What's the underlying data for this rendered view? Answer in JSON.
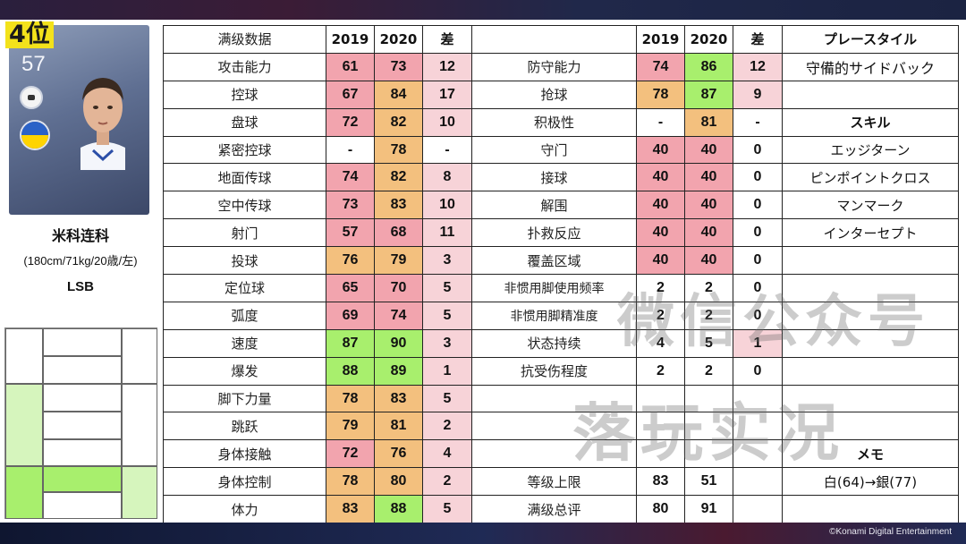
{
  "rank": "4位",
  "player": {
    "rating": "57",
    "name": "米科连科",
    "info": "(180cm/71kg/20歳/左)",
    "position": "LSB"
  },
  "headers": {
    "left_title": "满级数据",
    "y2019": "2019",
    "y2020": "2020",
    "diff": "差",
    "playstyle": "プレースタイル",
    "skill": "スキル",
    "memo": "メモ"
  },
  "left_stats": [
    {
      "label": "攻击能力",
      "v2019": "61",
      "v2020": "73",
      "diff": "12",
      "c2019": "pink",
      "c2020": "pink"
    },
    {
      "label": "控球",
      "v2019": "67",
      "v2020": "84",
      "diff": "17",
      "c2019": "pink",
      "c2020": "orange"
    },
    {
      "label": "盘球",
      "v2019": "72",
      "v2020": "82",
      "diff": "10",
      "c2019": "pink",
      "c2020": "orange"
    },
    {
      "label": "紧密控球",
      "v2019": "-",
      "v2020": "78",
      "diff": "-",
      "c2019": "none",
      "c2020": "orange"
    },
    {
      "label": "地面传球",
      "v2019": "74",
      "v2020": "82",
      "diff": "8",
      "c2019": "pink",
      "c2020": "orange"
    },
    {
      "label": "空中传球",
      "v2019": "73",
      "v2020": "83",
      "diff": "10",
      "c2019": "pink",
      "c2020": "orange"
    },
    {
      "label": "射门",
      "v2019": "57",
      "v2020": "68",
      "diff": "11",
      "c2019": "pink",
      "c2020": "pink"
    },
    {
      "label": "投球",
      "v2019": "76",
      "v2020": "79",
      "diff": "3",
      "c2019": "orange",
      "c2020": "orange"
    },
    {
      "label": "定位球",
      "v2019": "65",
      "v2020": "70",
      "diff": "5",
      "c2019": "pink",
      "c2020": "pink"
    },
    {
      "label": "弧度",
      "v2019": "69",
      "v2020": "74",
      "diff": "5",
      "c2019": "pink",
      "c2020": "pink"
    },
    {
      "label": "速度",
      "v2019": "87",
      "v2020": "90",
      "diff": "3",
      "c2019": "green",
      "c2020": "green"
    },
    {
      "label": "爆发",
      "v2019": "88",
      "v2020": "89",
      "diff": "1",
      "c2019": "green",
      "c2020": "green"
    },
    {
      "label": "脚下力量",
      "v2019": "78",
      "v2020": "83",
      "diff": "5",
      "c2019": "orange",
      "c2020": "orange"
    },
    {
      "label": "跳跃",
      "v2019": "79",
      "v2020": "81",
      "diff": "2",
      "c2019": "orange",
      "c2020": "orange"
    },
    {
      "label": "身体接触",
      "v2019": "72",
      "v2020": "76",
      "diff": "4",
      "c2019": "pink",
      "c2020": "orange"
    },
    {
      "label": "身体控制",
      "v2019": "78",
      "v2020": "80",
      "diff": "2",
      "c2019": "orange",
      "c2020": "orange"
    },
    {
      "label": "体力",
      "v2019": "83",
      "v2020": "88",
      "diff": "5",
      "c2019": "orange",
      "c2020": "green"
    }
  ],
  "right_stats": [
    {
      "label": "防守能力",
      "v2019": "74",
      "v2020": "86",
      "diff": "12",
      "c2019": "pink",
      "c2020": "green"
    },
    {
      "label": "抢球",
      "v2019": "78",
      "v2020": "87",
      "diff": "9",
      "c2019": "orange",
      "c2020": "green"
    },
    {
      "label": "积极性",
      "v2019": "-",
      "v2020": "81",
      "diff": "-",
      "c2019": "none",
      "c2020": "orange"
    },
    {
      "label": "守门",
      "v2019": "40",
      "v2020": "40",
      "diff": "0",
      "c2019": "pink",
      "c2020": "pink"
    },
    {
      "label": "接球",
      "v2019": "40",
      "v2020": "40",
      "diff": "0",
      "c2019": "pink",
      "c2020": "pink"
    },
    {
      "label": "解围",
      "v2019": "40",
      "v2020": "40",
      "diff": "0",
      "c2019": "pink",
      "c2020": "pink"
    },
    {
      "label": "扑救反应",
      "v2019": "40",
      "v2020": "40",
      "diff": "0",
      "c2019": "pink",
      "c2020": "pink"
    },
    {
      "label": "覆盖区域",
      "v2019": "40",
      "v2020": "40",
      "diff": "0",
      "c2019": "pink",
      "c2020": "pink"
    },
    {
      "label": "非惯用脚使用频率",
      "v2019": "2",
      "v2020": "2",
      "diff": "0",
      "c2019": "none",
      "c2020": "none"
    },
    {
      "label": "非惯用脚精准度",
      "v2019": "2",
      "v2020": "2",
      "diff": "0",
      "c2019": "none",
      "c2020": "none"
    },
    {
      "label": "状态持续",
      "v2019": "4",
      "v2020": "5",
      "diff": "1",
      "c2019": "none",
      "c2020": "none"
    },
    {
      "label": "抗受伤程度",
      "v2019": "2",
      "v2020": "2",
      "diff": "0",
      "c2019": "none",
      "c2020": "none"
    },
    {
      "label": "",
      "v2019": "",
      "v2020": "",
      "diff": "",
      "c2019": "none",
      "c2020": "none"
    },
    {
      "label": "",
      "v2019": "",
      "v2020": "",
      "diff": "",
      "c2019": "none",
      "c2020": "none"
    },
    {
      "label": "",
      "v2019": "",
      "v2020": "",
      "diff": "",
      "c2019": "none",
      "c2020": "none"
    },
    {
      "label": "等级上限",
      "v2019": "83",
      "v2020": "51",
      "diff": "",
      "c2019": "none",
      "c2020": "none"
    },
    {
      "label": "满级总评",
      "v2019": "80",
      "v2020": "91",
      "diff": "",
      "c2019": "none",
      "c2020": "none"
    }
  ],
  "playstyle": "守備的サイドバック",
  "skills": [
    "エッジターン",
    "ピンポイントクロス",
    "マンマーク",
    "インターセプト"
  ],
  "memo": "白(64)→銀(77)",
  "watermark": [
    "微信公众号",
    "落玩实况"
  ],
  "copyright": "©Konami Digital Entertainment",
  "colors": {
    "pink": "#f2a4ae",
    "orange": "#f3c07e",
    "green": "#a8ef6d",
    "diffpink": "#f7d3d8",
    "skill_red": "#c8232c",
    "rank_yellow": "#f3e21b"
  }
}
